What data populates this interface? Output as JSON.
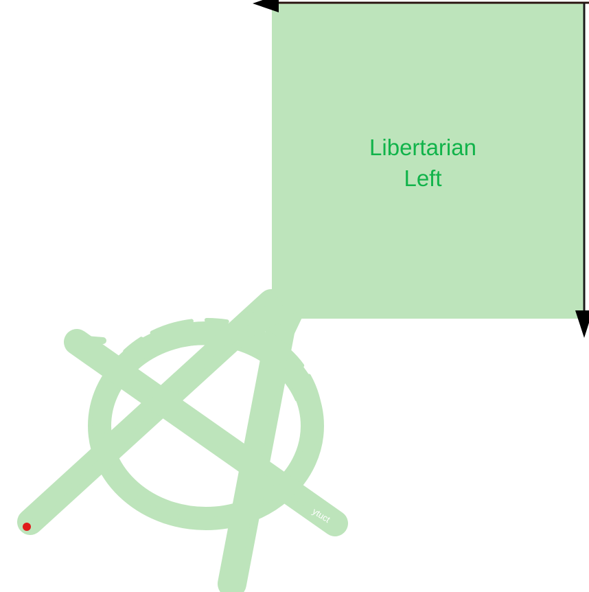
{
  "quadrant": {
    "label": "Libertarian\nLeft",
    "fill_color": "#bde4bb",
    "text_color": "#11b34a"
  },
  "axes": {
    "color": "#000000",
    "arrows": [
      "left-arrow-icon",
      "down-arrow-icon"
    ]
  },
  "emblem": {
    "icon": "anarchy-symbol-icon",
    "color": "#bde4bb",
    "signature": "ytuct"
  },
  "marker": {
    "icon": "position-dot-icon",
    "color": "#e01b1b"
  }
}
